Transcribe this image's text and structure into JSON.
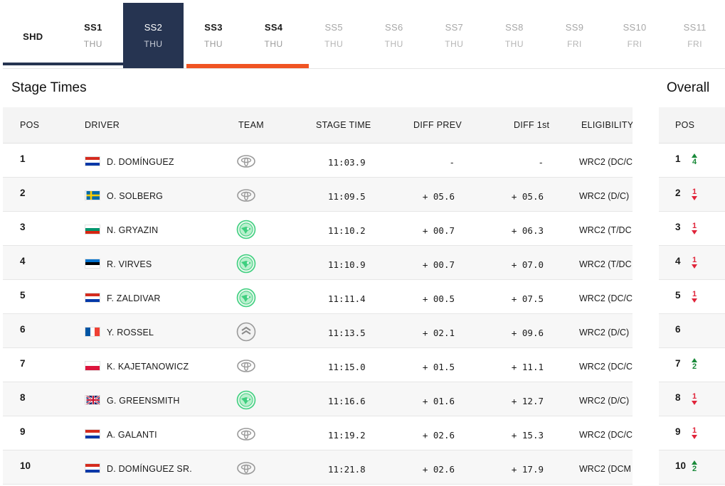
{
  "tabs": [
    {
      "code": "SHD",
      "day": "",
      "state": "done"
    },
    {
      "code": "SS1",
      "day": "THU",
      "state": "done"
    },
    {
      "code": "SS2",
      "day": "THU",
      "state": "active"
    },
    {
      "code": "SS3",
      "day": "THU",
      "state": "done"
    },
    {
      "code": "SS4",
      "day": "THU",
      "state": "done"
    },
    {
      "code": "SS5",
      "day": "THU",
      "state": "future"
    },
    {
      "code": "SS6",
      "day": "THU",
      "state": "future"
    },
    {
      "code": "SS7",
      "day": "THU",
      "state": "future"
    },
    {
      "code": "SS8",
      "day": "THU",
      "state": "future"
    },
    {
      "code": "SS9",
      "day": "FRI",
      "state": "future"
    },
    {
      "code": "SS10",
      "day": "FRI",
      "state": "future"
    },
    {
      "code": "SS11",
      "day": "FRI",
      "state": "future"
    }
  ],
  "colors": {
    "active_tab": "#263451",
    "accent": "#f05423",
    "up": "#1a8a3a",
    "down": "#e0243a"
  },
  "stage": {
    "title": "Stage Times",
    "columns": {
      "pos": "POS",
      "driver": "DRIVER",
      "team": "TEAM",
      "stage_time": "STAGE TIME",
      "diff_prev": "DIFF PREV",
      "diff_1st": "DIFF 1st",
      "eligibility": "ELIGIBILITY"
    },
    "rows": [
      {
        "pos": "1",
        "flag": "paraguay",
        "driver": "D. DOMÍNGUEZ",
        "team": "toyota-logo-icon",
        "time": "11:03.9",
        "diff_prev": "-",
        "diff_1st": "-",
        "eligibility": "WRC2 (DC/C"
      },
      {
        "pos": "2",
        "flag": "sweden",
        "driver": "O. SOLBERG",
        "team": "toyota-logo-icon",
        "time": "11:09.5",
        "diff_prev": "+ 05.6",
        "diff_1st": "+ 05.6",
        "eligibility": "WRC2 (D/C)"
      },
      {
        "pos": "3",
        "flag": "bulgaria",
        "driver": "N. GRYAZIN",
        "team": "skoda-logo-icon",
        "time": "11:10.2",
        "diff_prev": "+ 00.7",
        "diff_1st": "+ 06.3",
        "eligibility": "WRC2 (T/DC"
      },
      {
        "pos": "4",
        "flag": "estonia",
        "driver": "R. VIRVES",
        "team": "skoda-logo-icon",
        "time": "11:10.9",
        "diff_prev": "+ 00.7",
        "diff_1st": "+ 07.0",
        "eligibility": "WRC2 (T/DC"
      },
      {
        "pos": "5",
        "flag": "paraguay",
        "driver": "F. ZALDIVAR",
        "team": "skoda-logo-icon",
        "time": "11:11.4",
        "diff_prev": "+ 00.5",
        "diff_1st": "+ 07.5",
        "eligibility": "WRC2 (DC/C"
      },
      {
        "pos": "6",
        "flag": "france",
        "driver": "Y. ROSSEL",
        "team": "citroen-logo-icon",
        "time": "11:13.5",
        "diff_prev": "+ 02.1",
        "diff_1st": "+ 09.6",
        "eligibility": "WRC2 (D/C)"
      },
      {
        "pos": "7",
        "flag": "poland",
        "driver": "K. KAJETANOWICZ",
        "team": "toyota-logo-icon",
        "time": "11:15.0",
        "diff_prev": "+ 01.5",
        "diff_1st": "+ 11.1",
        "eligibility": "WRC2 (DC/C"
      },
      {
        "pos": "8",
        "flag": "uk",
        "driver": "G. GREENSMITH",
        "team": "skoda-logo-icon",
        "time": "11:16.6",
        "diff_prev": "+ 01.6",
        "diff_1st": "+ 12.7",
        "eligibility": "WRC2 (D/C)"
      },
      {
        "pos": "9",
        "flag": "paraguay",
        "driver": "A. GALANTI",
        "team": "toyota-logo-icon",
        "time": "11:19.2",
        "diff_prev": "+ 02.6",
        "diff_1st": "+ 15.3",
        "eligibility": "WRC2 (DC/C"
      },
      {
        "pos": "10",
        "flag": "paraguay",
        "driver": "D. DOMÍNGUEZ SR.",
        "team": "toyota-logo-icon",
        "time": "11:21.8",
        "diff_prev": "+ 02.6",
        "diff_1st": "+ 17.9",
        "eligibility": "WRC2 (DCM"
      }
    ]
  },
  "overall": {
    "title": "Overall",
    "column": "POS",
    "rows": [
      {
        "pos": "1",
        "dir": "up",
        "change": "4"
      },
      {
        "pos": "2",
        "dir": "down",
        "change": "1"
      },
      {
        "pos": "3",
        "dir": "down",
        "change": "1"
      },
      {
        "pos": "4",
        "dir": "down",
        "change": "1"
      },
      {
        "pos": "5",
        "dir": "down",
        "change": "1"
      },
      {
        "pos": "6",
        "dir": "",
        "change": ""
      },
      {
        "pos": "7",
        "dir": "up",
        "change": "2"
      },
      {
        "pos": "8",
        "dir": "down",
        "change": "1"
      },
      {
        "pos": "9",
        "dir": "down",
        "change": "1"
      },
      {
        "pos": "10",
        "dir": "up",
        "change": "2"
      }
    ]
  }
}
